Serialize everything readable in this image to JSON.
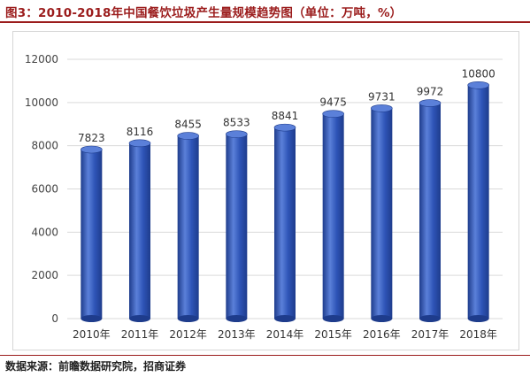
{
  "title": "图3：2010-2018年中国餐饮垃圾产生量规模趋势图（单位：万吨，%）",
  "source": "数据来源：前瞻数据研究院，招商证券",
  "colors": {
    "title": "#9b1c1c",
    "bar": "#2f55b8",
    "bar_dark": "#1e3c8c",
    "bar_light": "#5b80d9"
  },
  "chart_data": {
    "type": "bar",
    "categories": [
      "2010年",
      "2011年",
      "2012年",
      "2013年",
      "2014年",
      "2015年",
      "2016年",
      "2017年",
      "2018年"
    ],
    "values": [
      7823,
      8116,
      8455,
      8533,
      8841,
      9475,
      9731,
      9972,
      10800
    ],
    "y_ticks": [
      0,
      2000,
      4000,
      6000,
      8000,
      10000,
      12000
    ],
    "ylim": [
      0,
      12000
    ],
    "grid": true,
    "data_labels": [
      "7823",
      "8116",
      "8455",
      "8533",
      "8841",
      "9475",
      "9731",
      "9972",
      "10800"
    ]
  }
}
